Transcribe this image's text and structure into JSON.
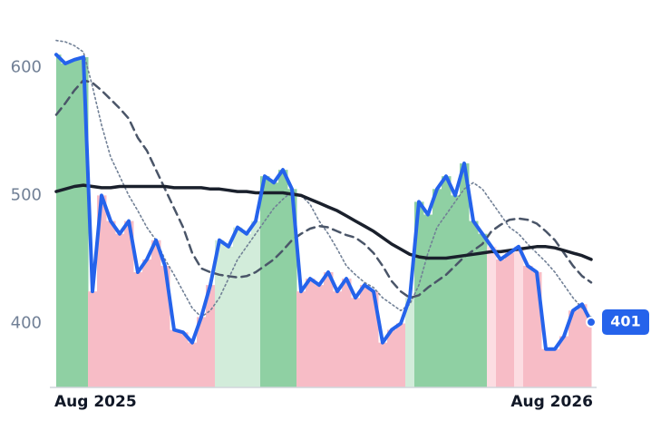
{
  "chart_data": {
    "type": "line",
    "categories": [
      "Aug 2025",
      null,
      null,
      null,
      null,
      null,
      null,
      null,
      null,
      null,
      null,
      null,
      null,
      null,
      null,
      null,
      null,
      null,
      null,
      null,
      null,
      null,
      null,
      null,
      null,
      null,
      null,
      null,
      null,
      null,
      null,
      null,
      null,
      null,
      null,
      null,
      null,
      null,
      null,
      null,
      null,
      null,
      null,
      null,
      null,
      null,
      null,
      null,
      null,
      null,
      null,
      null,
      null,
      null,
      null,
      null,
      null,
      null,
      null,
      "Aug 2026"
    ],
    "series": [
      {
        "color": "#2563eb",
        "values": [
          610,
          603,
          606,
          608,
          425,
          500,
          480,
          470,
          480,
          440,
          450,
          465,
          445,
          395,
          393,
          385,
          405,
          430,
          465,
          460,
          475,
          470,
          480,
          515,
          510,
          520,
          505,
          425,
          435,
          430,
          440,
          425,
          435,
          420,
          430,
          425,
          385,
          395,
          400,
          420,
          495,
          485,
          505,
          515,
          500,
          525,
          480,
          470,
          460,
          450,
          455,
          460,
          445,
          440,
          380,
          380,
          390,
          410,
          415,
          401
        ]
      },
      {
        "color": "#1a202c",
        "style": "solid",
        "values": [
          503,
          505,
          507,
          508,
          507,
          506,
          506,
          507,
          507,
          507,
          507,
          507,
          507,
          506,
          506,
          506,
          506,
          505,
          505,
          504,
          503,
          503,
          502,
          502,
          502,
          502,
          501,
          500,
          497,
          494,
          491,
          488,
          484,
          480,
          476,
          472,
          467,
          462,
          458,
          454,
          452,
          451,
          451,
          451,
          452,
          453,
          454,
          455,
          456,
          456,
          457,
          458,
          459,
          460,
          460,
          459,
          457,
          455,
          453,
          450
        ]
      },
      {
        "color": "#4a5568",
        "style": "dashed",
        "values": [
          563,
          572,
          582,
          590,
          588,
          582,
          575,
          568,
          560,
          545,
          535,
          520,
          505,
          490,
          475,
          455,
          443,
          440,
          438,
          437,
          436,
          437,
          440,
          445,
          450,
          457,
          465,
          470,
          474,
          476,
          475,
          472,
          469,
          467,
          462,
          455,
          445,
          433,
          425,
          420,
          422,
          428,
          433,
          438,
          445,
          452,
          457,
          462,
          472,
          477,
          481,
          482,
          481,
          478,
          472,
          465,
          455,
          445,
          437,
          432
        ]
      },
      {
        "color": "#718096",
        "style": "dotted",
        "values": [
          621,
          620,
          617,
          612,
          585,
          555,
          530,
          515,
          500,
          488,
          475,
          465,
          450,
          438,
          425,
          412,
          405,
          410,
          420,
          435,
          450,
          460,
          470,
          480,
          490,
          497,
          503,
          500,
          493,
          480,
          470,
          458,
          445,
          438,
          432,
          428,
          420,
          415,
          410,
          415,
          430,
          455,
          475,
          485,
          495,
          505,
          510,
          505,
          495,
          485,
          475,
          470,
          462,
          455,
          448,
          440,
          430,
          420,
          412,
          405
        ]
      }
    ],
    "area_colors": {
      "up_strong": "#8fd0a3",
      "up_light": "#d2ecda",
      "down_strong": "#f7bcc6",
      "down_light": "#fcdde2"
    },
    "ylim": [
      350,
      625
    ],
    "yticks": [
      400,
      500,
      600
    ]
  }
}
